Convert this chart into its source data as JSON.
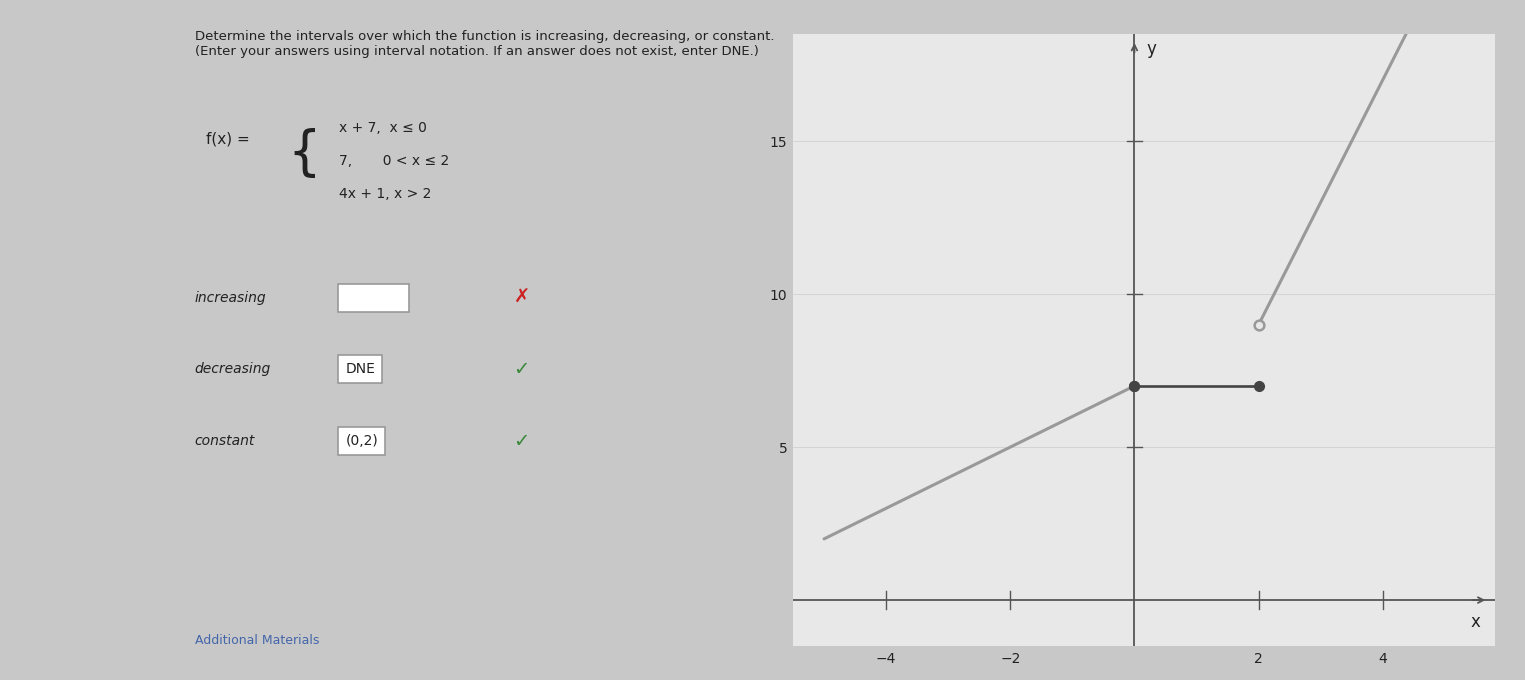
{
  "title_line1": "Determine the intervals over which the function is increasing, decreasing, or constant. (Enter your answers using interval notation. If an answer does not exist, enter DNE.)",
  "piece1_text": "x + 7,  x ≤ 0",
  "piece2_text": "7,       0 < x ≤ 2",
  "piece3_text": "4x + 1, x > 2",
  "increasing_label": "increasing",
  "increasing_answer": "",
  "decreasing_label": "decreasing",
  "decreasing_answer": "DNE",
  "constant_label": "constant",
  "constant_answer": "(0,2)",
  "graph_xlim": [
    -5.5,
    5.8
  ],
  "graph_ylim": [
    -1.5,
    18.5
  ],
  "graph_xticks": [
    -4,
    -2,
    2,
    4
  ],
  "graph_yticks": [
    5,
    10,
    15
  ],
  "graph_xlabel": "x",
  "graph_ylabel": "y",
  "line_color": "#999999",
  "line_color_dark": "#444444",
  "line_width": 2.2,
  "dot_size": 7,
  "bg_color": "#c8c8c8",
  "panel_color": "#e8e8e8",
  "text_color": "#222222",
  "check_green": "#3a8a3a",
  "cross_red": "#cc2222",
  "box_bg": "#ffffff",
  "box_edge": "#999999"
}
